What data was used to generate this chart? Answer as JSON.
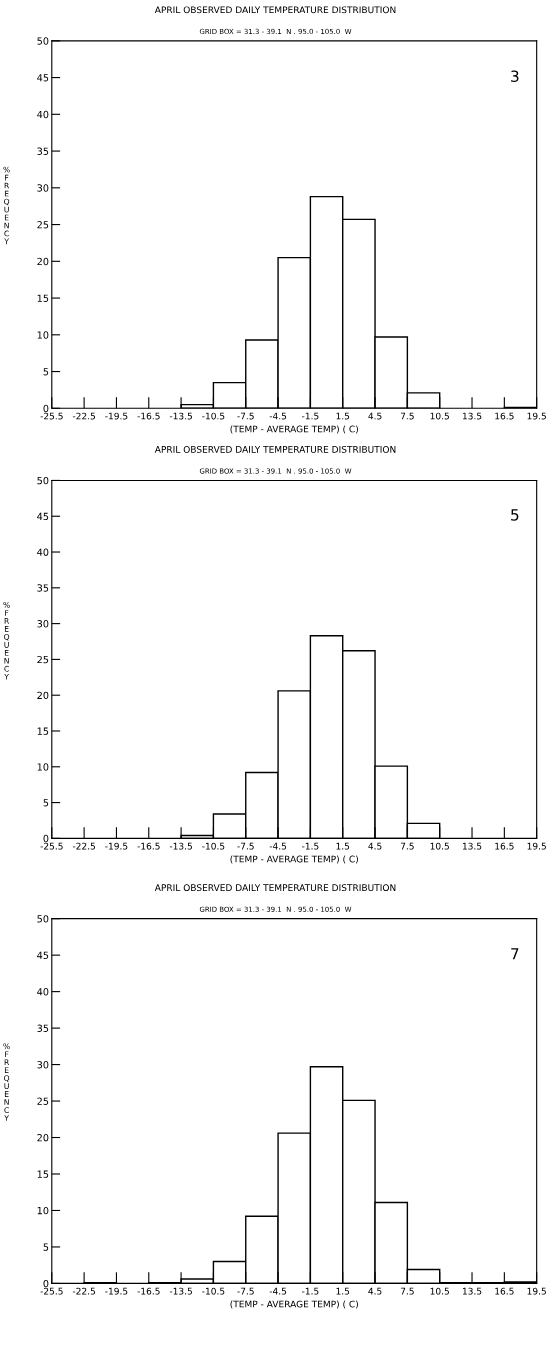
{
  "chart_data": [
    {
      "type": "histogram",
      "title": "APRIL OBSERVED DAILY TEMPERATURE DISTRIBUTION",
      "subtitle": "GRID BOX = 31.3 - 39.1  N . 95.0 - 105.0  W",
      "xlabel": "(TEMP - AVERAGE TEMP) ( C)",
      "ylabel": "% FREQUENCY",
      "annotations": [
        "3"
      ],
      "color": "#ffffff",
      "bins": [
        -25.5,
        -22.5,
        -19.5,
        -16.5,
        -13.5,
        -10.5,
        -7.5,
        -4.5,
        -1.5,
        1.5,
        4.5,
        7.5,
        10.5,
        13.5,
        16.5,
        19.5
      ],
      "values": [
        0,
        0,
        0,
        0,
        0.5,
        3.5,
        9.3,
        20.5,
        28.8,
        25.7,
        9.7,
        2.1,
        0,
        0,
        0.1
      ],
      "xlim": [
        -25.5,
        19.5
      ],
      "xticks": [
        -25.5,
        -22.5,
        -19.5,
        -16.5,
        -13.5,
        -10.5,
        -7.5,
        -4.5,
        -1.5,
        1.5,
        4.5,
        7.5,
        10.5,
        13.5,
        16.5,
        19.5
      ],
      "ylim": [
        0,
        50
      ],
      "yticks": [
        0,
        5,
        10,
        15,
        20,
        25,
        30,
        35,
        40,
        45,
        50
      ],
      "grid": false
    },
    {
      "type": "histogram",
      "title": "APRIL OBSERVED DAILY TEMPERATURE DISTRIBUTION",
      "subtitle": "GRID BOX = 31.3 - 39.1  N . 95.0 - 105.0  W",
      "xlabel": "(TEMP - AVERAGE TEMP) ( C)",
      "ylabel": "% FREQUENCY",
      "annotations": [
        "5"
      ],
      "color": "#ffffff",
      "bins": [
        -25.5,
        -22.5,
        -19.5,
        -16.5,
        -13.5,
        -10.5,
        -7.5,
        -4.5,
        -1.5,
        1.5,
        4.5,
        7.5,
        10.5,
        13.5,
        16.5,
        19.5
      ],
      "values": [
        0,
        0,
        0,
        0,
        0.4,
        3.4,
        9.2,
        20.6,
        28.3,
        26.2,
        10.1,
        2.1,
        0,
        0,
        0
      ],
      "xlim": [
        -25.5,
        19.5
      ],
      "xticks": [
        -25.5,
        -22.5,
        -19.5,
        -16.5,
        -13.5,
        -10.5,
        -7.5,
        -4.5,
        -1.5,
        1.5,
        4.5,
        7.5,
        10.5,
        13.5,
        16.5,
        19.5
      ],
      "ylim": [
        0,
        50
      ],
      "yticks": [
        0,
        5,
        10,
        15,
        20,
        25,
        30,
        35,
        40,
        45,
        50
      ],
      "grid": false
    },
    {
      "type": "histogram",
      "title": "APRIL OBSERVED DAILY TEMPERATURE DISTRIBUTION",
      "subtitle": "GRID BOX = 31.3 - 39.1  N . 95.0 - 105.0  W",
      "xlabel": "(TEMP - AVERAGE TEMP) ( C)",
      "ylabel": "% FREQUENCY",
      "annotations": [
        "7"
      ],
      "color": "#ffffff",
      "bins": [
        -25.5,
        -22.5,
        -19.5,
        -16.5,
        -13.5,
        -10.5,
        -7.5,
        -4.5,
        -1.5,
        1.5,
        4.5,
        7.5,
        10.5,
        13.5,
        16.5,
        19.5
      ],
      "values": [
        0,
        0.1,
        0,
        0.1,
        0.6,
        3.0,
        9.2,
        20.6,
        29.7,
        25.1,
        11.1,
        1.9,
        0.1,
        0.1,
        0.2
      ],
      "xlim": [
        -25.5,
        19.5
      ],
      "xticks": [
        -25.5,
        -22.5,
        -19.5,
        -16.5,
        -13.5,
        -10.5,
        -7.5,
        -4.5,
        -1.5,
        1.5,
        4.5,
        7.5,
        10.5,
        13.5,
        16.5,
        19.5
      ],
      "ylim": [
        0,
        50
      ],
      "yticks": [
        0,
        5,
        10,
        15,
        20,
        25,
        30,
        35,
        40,
        45,
        50
      ],
      "grid": false
    }
  ]
}
